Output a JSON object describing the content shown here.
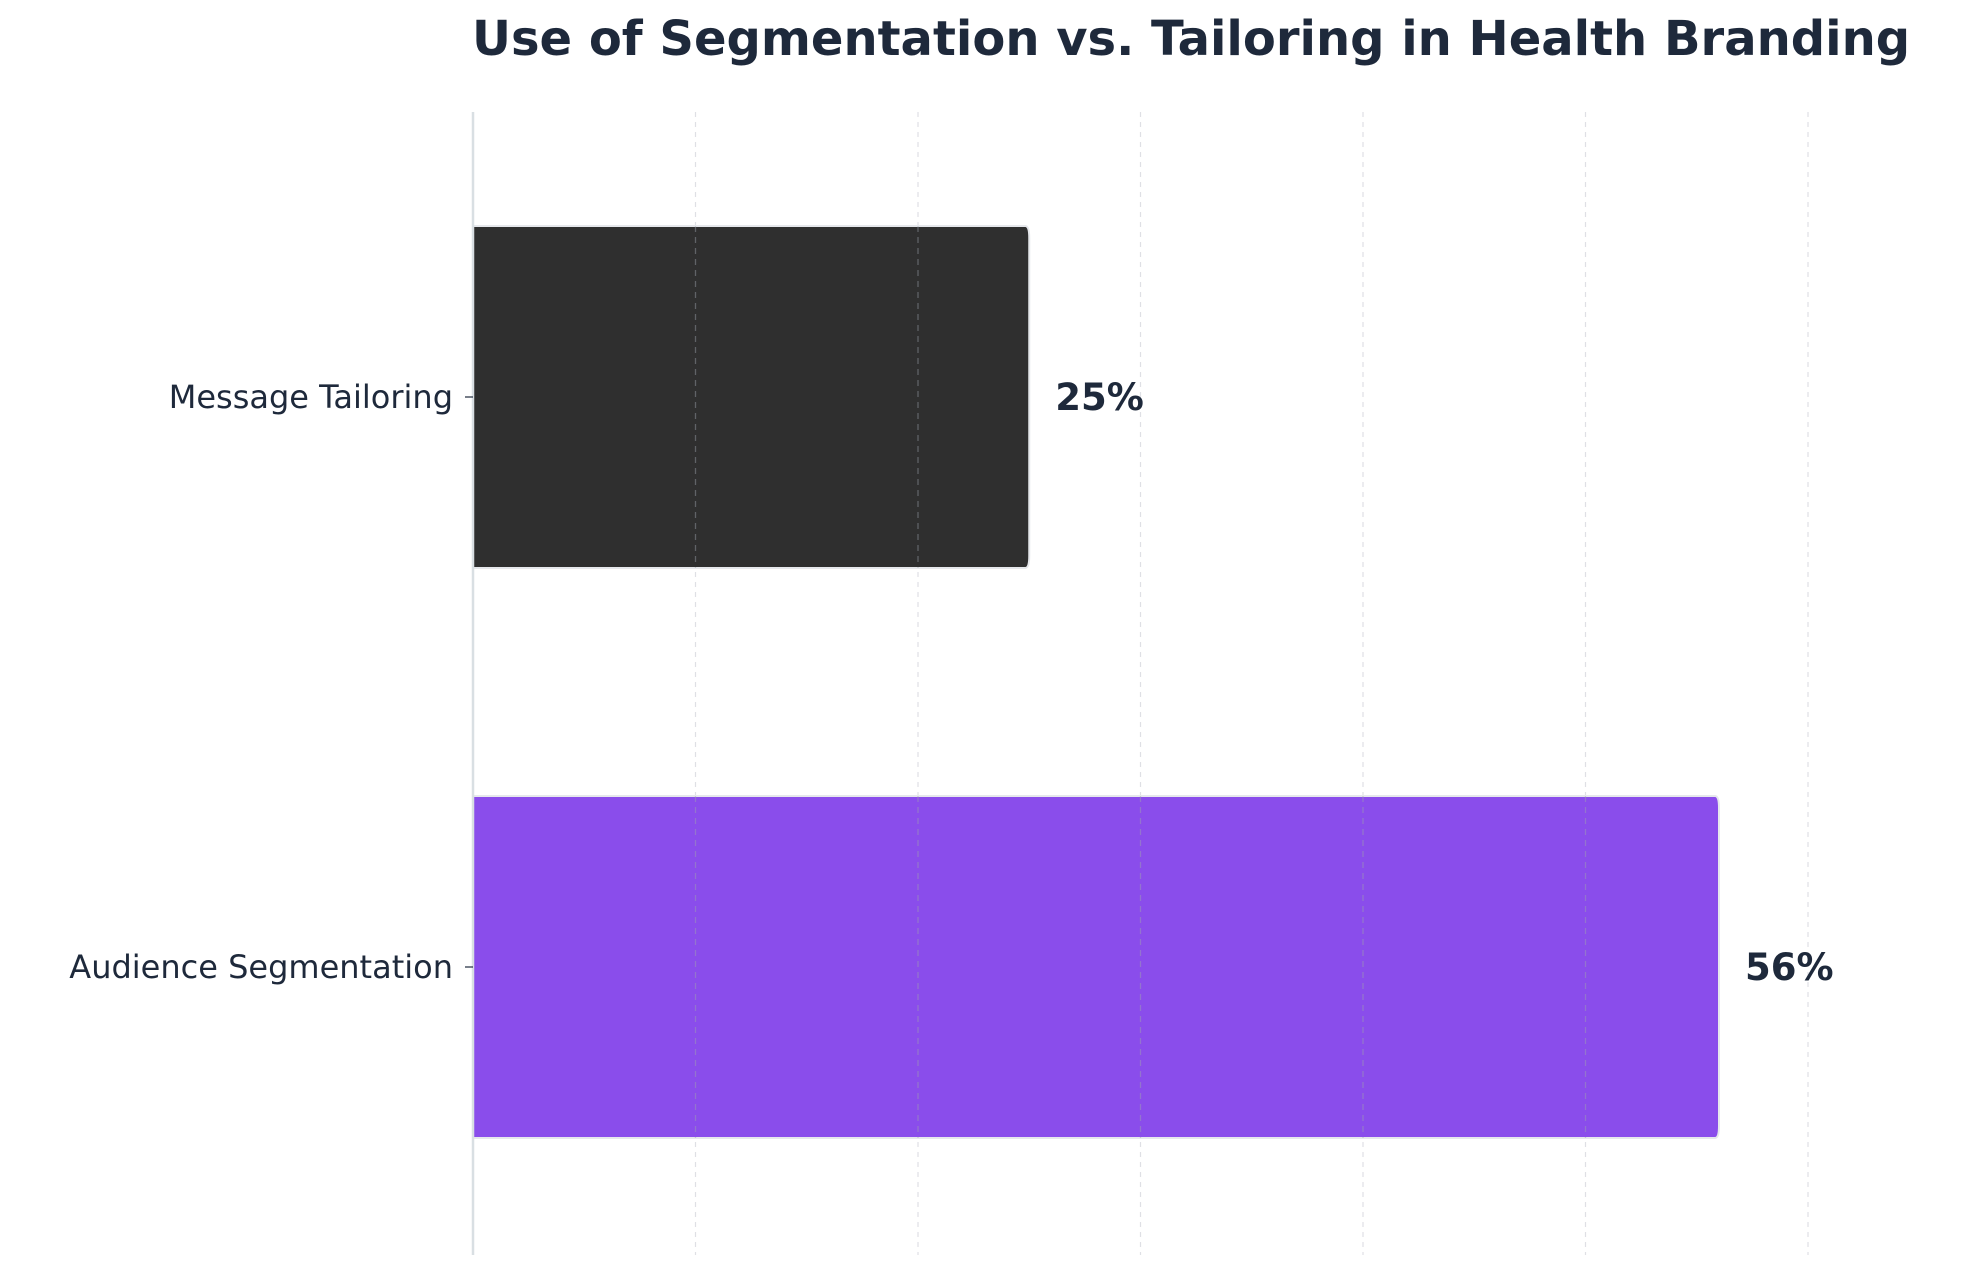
{
  "chart_data": {
    "type": "bar",
    "orientation": "horizontal",
    "title": "Use of Segmentation vs. Tailoring in Health Branding",
    "xlabel": "",
    "ylabel": "",
    "xlim": [
      0,
      60
    ],
    "grid": "vertical dashed",
    "value_suffix": "%",
    "categories": [
      "Message Tailoring",
      "Audience Segmentation"
    ],
    "values": [
      25,
      56
    ],
    "value_labels": [
      "25%",
      "56%"
    ],
    "colors": [
      "#2f2f2f",
      "#8a4deb"
    ]
  },
  "colors": {
    "title": "#1e293b",
    "text": "#1e293b",
    "axis_spine": "#d9dfe3",
    "grid": "#c9ccd4"
  }
}
